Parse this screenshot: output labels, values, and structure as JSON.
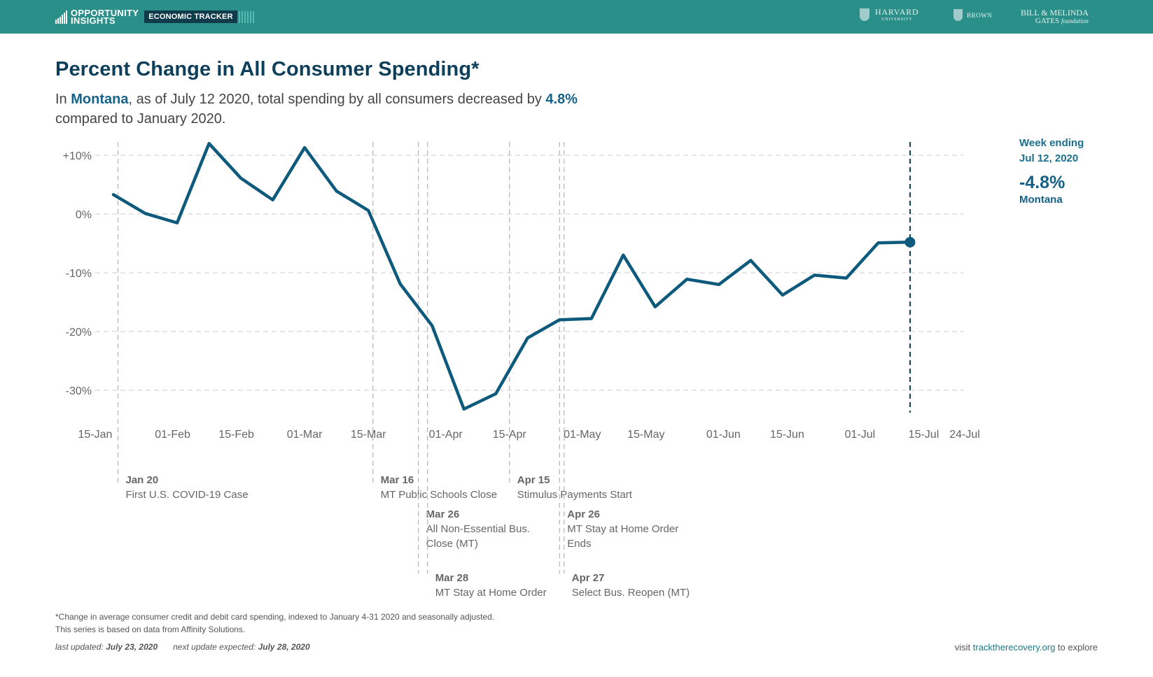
{
  "header": {
    "brand_line1": "OPPORTUNITY",
    "brand_line2": "INSIGHTS",
    "tracker_label": "ECONOMIC TRACKER",
    "partners": {
      "harvard": "HARVARD",
      "harvard_sub": "UNIVERSITY",
      "brown": "BROWN",
      "gates_line1": "BILL & MELINDA",
      "gates_line2": "GATES",
      "gates_line2b": "foundation"
    }
  },
  "title": "Percent Change in All Consumer Spending*",
  "subtitle": {
    "p1": "In ",
    "region": "Montana",
    "p2": ", as of July 12 2020, total spending by all consumers decreased by ",
    "value": "4.8%",
    "p3": " compared to January 2020."
  },
  "colors": {
    "header_bg": "#2a8f89",
    "line": "#0e5a7c",
    "title": "#0e3f5a",
    "accent": "#166288"
  },
  "chart_data": {
    "type": "line",
    "title": "Percent Change in All Consumer Spending*",
    "xlabel": "",
    "ylabel": "",
    "x_tick_labels": [
      "15-Jan",
      "01-Feb",
      "15-Feb",
      "01-Mar",
      "15-Mar",
      "01-Apr",
      "15-Apr",
      "01-May",
      "15-May",
      "01-Jun",
      "15-Jun",
      "01-Jul",
      "15-Jul",
      "24-Jul"
    ],
    "x_tick_dates": [
      "2020-01-15",
      "2020-02-01",
      "2020-02-15",
      "2020-03-01",
      "2020-03-15",
      "2020-04-01",
      "2020-04-15",
      "2020-05-01",
      "2020-05-15",
      "2020-06-01",
      "2020-06-15",
      "2020-07-01",
      "2020-07-15",
      "2020-07-24"
    ],
    "y_tick_labels": [
      "+10%",
      "0%",
      "-10%",
      "-20%",
      "-30%"
    ],
    "y_ticks": [
      10,
      0,
      -10,
      -20,
      -30
    ],
    "ylim": [
      -36,
      12
    ],
    "xlim": [
      "2020-01-15",
      "2020-07-24"
    ],
    "grid": true,
    "series": [
      {
        "color": "#0e5a7c",
        "x": [
          "2020-01-19",
          "2020-01-26",
          "2020-02-02",
          "2020-02-09",
          "2020-02-16",
          "2020-02-23",
          "2020-03-01",
          "2020-03-08",
          "2020-03-15",
          "2020-03-22",
          "2020-03-29",
          "2020-04-05",
          "2020-04-12",
          "2020-04-19",
          "2020-04-26",
          "2020-05-03",
          "2020-05-10",
          "2020-05-17",
          "2020-05-24",
          "2020-05-31",
          "2020-06-07",
          "2020-06-14",
          "2020-06-21",
          "2020-06-28",
          "2020-07-05",
          "2020-07-12"
        ],
        "y": [
          3.3,
          0.1,
          -1.5,
          12.0,
          6.1,
          2.4,
          11.3,
          3.9,
          0.6,
          -11.9,
          -19.0,
          -33.2,
          -30.6,
          -21.1,
          -18.0,
          -17.8,
          -7.0,
          -15.8,
          -11.1,
          -12.0,
          -7.9,
          -13.8,
          -10.4,
          -10.9,
          -4.9,
          -4.8
        ]
      }
    ],
    "highlight": {
      "date": "2020-07-12",
      "value": -4.8
    },
    "events": [
      {
        "date": "2020-01-20",
        "label_date": "Jan 20",
        "label": "First U.S. COVID-19 Case"
      },
      {
        "date": "2020-03-16",
        "label_date": "Mar 16",
        "label": "MT Public Schools Close"
      },
      {
        "date": "2020-03-26",
        "label_date": "Mar 26",
        "label_lines": [
          "All Non-Essential Bus.",
          "Close (MT)"
        ]
      },
      {
        "date": "2020-03-28",
        "label_date": "Mar 28",
        "label": "MT Stay at Home Order"
      },
      {
        "date": "2020-04-15",
        "label_date": "Apr 15",
        "label": "Stimulus Payments Start"
      },
      {
        "date": "2020-04-26",
        "label_date": "Apr 26",
        "label_lines": [
          "MT Stay at Home Order",
          "Ends"
        ]
      },
      {
        "date": "2020-04-27",
        "label_date": "Apr 27",
        "label": "Select Bus. Reopen (MT)"
      }
    ]
  },
  "sidebox": {
    "label_line1": "Week ending",
    "label_line2": "Jul 12, 2020",
    "value": "-4.8%",
    "region": "Montana"
  },
  "footnote": {
    "line1": "*Change in average consumer credit and debit card spending, indexed to January 4-31 2020 and seasonally adjusted.",
    "line2": "This series is based on data from Affinity Solutions."
  },
  "updated": {
    "last_label": "last updated: ",
    "last_date": "July 23, 2020",
    "next_label": "next update expected: ",
    "next_date": "July 28, 2020"
  },
  "visit": {
    "p1": "visit ",
    "link": "tracktherecovery.org",
    "p2": " to explore"
  }
}
